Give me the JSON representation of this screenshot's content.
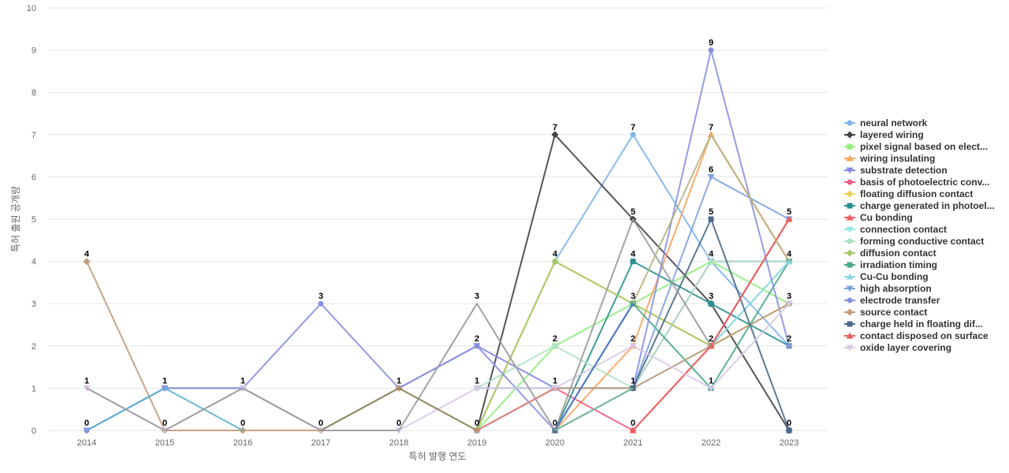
{
  "chart_data": {
    "type": "line",
    "title": "",
    "xlabel": "특허 발행 연도",
    "ylabel": "특허 출원 공개량",
    "x": [
      "2014",
      "2015",
      "2016",
      "2017",
      "2018",
      "2019",
      "2020",
      "2021",
      "2022",
      "2023"
    ],
    "ylim": [
      0,
      10
    ],
    "yticks": [
      "0",
      "1",
      "2",
      "3",
      "4",
      "5",
      "6",
      "7",
      "8",
      "9",
      "10"
    ],
    "grid": true,
    "legend_position": "right",
    "series": [
      {
        "name": "neural network",
        "color": "#7cb5ec",
        "marker": "circle",
        "values": [
          null,
          null,
          null,
          null,
          null,
          0,
          4,
          7,
          4,
          2
        ]
      },
      {
        "name": "layered wiring",
        "color": "#434348",
        "marker": "diamond",
        "values": [
          null,
          null,
          null,
          null,
          null,
          0,
          7,
          5,
          3,
          0
        ]
      },
      {
        "name": "pixel signal based on elect...",
        "color": "#90ed7d",
        "marker": "square",
        "values": [
          null,
          null,
          null,
          null,
          null,
          0,
          2,
          3,
          4,
          3
        ]
      },
      {
        "name": "wiring insulating",
        "color": "#f7a35c",
        "marker": "triangle",
        "values": [
          null,
          null,
          null,
          null,
          null,
          null,
          0,
          2,
          7,
          4
        ]
      },
      {
        "name": "substrate detection",
        "color": "#8085e9",
        "marker": "triangle-down",
        "values": [
          0,
          1,
          1,
          0,
          1,
          2,
          1,
          1,
          4,
          4
        ]
      },
      {
        "name": "basis of photoelectric conv...",
        "color": "#f15c80",
        "marker": "circle",
        "values": [
          null,
          null,
          null,
          null,
          null,
          0,
          1,
          0,
          2,
          5
        ]
      },
      {
        "name": "floating diffusion contact",
        "color": "#e4d354",
        "marker": "diamond",
        "values": [
          null,
          null,
          null,
          null,
          null,
          0,
          4,
          3,
          2,
          3
        ]
      },
      {
        "name": "charge generated in photoel...",
        "color": "#2b908f",
        "marker": "square",
        "values": [
          null,
          null,
          null,
          null,
          null,
          null,
          0,
          4,
          3,
          2
        ]
      },
      {
        "name": "Cu bonding",
        "color": "#f45b5b",
        "marker": "triangle",
        "values": [
          null,
          null,
          null,
          null,
          null,
          null,
          null,
          0,
          2,
          5
        ]
      },
      {
        "name": "connection contact",
        "color": "#91e8e1",
        "marker": "triangle-down",
        "values": [
          null,
          null,
          null,
          null,
          null,
          1,
          1,
          1,
          2,
          4
        ]
      },
      {
        "name": "forming conductive contact",
        "color": "#b0e0c0",
        "marker": "circle",
        "values": [
          null,
          null,
          null,
          null,
          null,
          1,
          2,
          1,
          4,
          4
        ]
      },
      {
        "name": "diffusion contact",
        "color": "#a6c96a",
        "marker": "diamond",
        "values": [
          null,
          null,
          null,
          null,
          null,
          0,
          4,
          3,
          2,
          3
        ]
      },
      {
        "name": "irradiation timing",
        "color": "#4aaa8a",
        "marker": "square",
        "values": [
          null,
          null,
          null,
          null,
          null,
          null,
          0,
          3,
          1,
          4
        ]
      },
      {
        "name": "Cu-Cu bonding",
        "color": "#88d8e0",
        "marker": "triangle",
        "values": [
          null,
          null,
          null,
          null,
          null,
          0,
          1,
          1,
          2,
          4
        ]
      },
      {
        "name": "high absorption",
        "color": "#7ba3e0",
        "marker": "triangle-down",
        "values": [
          null,
          null,
          null,
          null,
          null,
          1,
          1,
          1,
          6,
          5
        ]
      },
      {
        "name": "electrode transfer",
        "color": "#8891e0",
        "marker": "circle",
        "values": [
          0,
          1,
          1,
          3,
          1,
          2,
          0,
          1,
          9,
          2
        ]
      },
      {
        "name": "source contact",
        "color": "#c49a7a",
        "marker": "diamond",
        "values": [
          4,
          0,
          0,
          0,
          1,
          0,
          1,
          1,
          2,
          3
        ]
      },
      {
        "name": "charge held in floating dif...",
        "color": "#4a6a8a",
        "marker": "square",
        "values": [
          null,
          null,
          null,
          null,
          null,
          null,
          0,
          1,
          5,
          0
        ]
      },
      {
        "name": "contact disposed on surface",
        "color": "#e46060",
        "marker": "triangle",
        "values": [
          null,
          null,
          null,
          null,
          null,
          null,
          null,
          null,
          2,
          5
        ]
      },
      {
        "name": "oxide layer covering",
        "color": "#d8c8e4",
        "marker": "triangle-down",
        "values": [
          1,
          0,
          1,
          0,
          0,
          1,
          1,
          2,
          1,
          3
        ]
      },
      {
        "name": "",
        "color": "#5ab4cc",
        "marker": "none",
        "values": [
          0,
          1,
          0,
          null,
          null,
          null,
          null,
          null,
          null,
          null
        ]
      },
      {
        "name": "",
        "color": "#9a9a9a",
        "marker": "none",
        "values": [
          1,
          0,
          1,
          0,
          0,
          3,
          0,
          5,
          2,
          null
        ]
      },
      {
        "name": "",
        "color": "#8a8a60",
        "marker": "none",
        "values": [
          null,
          null,
          null,
          0,
          1,
          0,
          null,
          null,
          null,
          null
        ]
      },
      {
        "name": "",
        "color": "#b8b080",
        "marker": "none",
        "values": [
          null,
          null,
          null,
          null,
          null,
          null,
          null,
          3,
          7,
          4
        ]
      },
      {
        "name": "",
        "color": "#4d6ed0",
        "marker": "none",
        "values": [
          null,
          null,
          null,
          null,
          null,
          null,
          0,
          3,
          null,
          null
        ]
      },
      {
        "name": "",
        "color": "#e08080",
        "marker": "none",
        "values": [
          null,
          null,
          null,
          null,
          null,
          0,
          1,
          null,
          null,
          null
        ]
      },
      {
        "name": "",
        "color": "#80c8a0",
        "marker": "none",
        "values": [
          null,
          null,
          null,
          null,
          null,
          null,
          0,
          1,
          null,
          null
        ]
      }
    ],
    "data_labels": [
      {
        "x": "2014",
        "y": 4,
        "text": "4"
      },
      {
        "x": "2014",
        "y": 1,
        "text": "1"
      },
      {
        "x": "2014",
        "y": 0,
        "text": "0"
      },
      {
        "x": "2015",
        "y": 1,
        "text": "1"
      },
      {
        "x": "2015",
        "y": 0,
        "text": "0"
      },
      {
        "x": "2016",
        "y": 1,
        "text": "1"
      },
      {
        "x": "2016",
        "y": 0,
        "text": "0"
      },
      {
        "x": "2017",
        "y": 3,
        "text": "3"
      },
      {
        "x": "2017",
        "y": 0,
        "text": "0"
      },
      {
        "x": "2018",
        "y": 1,
        "text": "1"
      },
      {
        "x": "2018",
        "y": 0,
        "text": "0"
      },
      {
        "x": "2019",
        "y": 3,
        "text": "3"
      },
      {
        "x": "2019",
        "y": 2,
        "text": "2"
      },
      {
        "x": "2019",
        "y": 1,
        "text": "1"
      },
      {
        "x": "2019",
        "y": 0,
        "text": "0"
      },
      {
        "x": "2020",
        "y": 7,
        "text": "7"
      },
      {
        "x": "2020",
        "y": 4,
        "text": "4"
      },
      {
        "x": "2020",
        "y": 2,
        "text": "2"
      },
      {
        "x": "2020",
        "y": 1,
        "text": "1"
      },
      {
        "x": "2020",
        "y": 0,
        "text": "0"
      },
      {
        "x": "2021",
        "y": 7,
        "text": "7"
      },
      {
        "x": "2021",
        "y": 5,
        "text": "5"
      },
      {
        "x": "2021",
        "y": 4,
        "text": "4"
      },
      {
        "x": "2021",
        "y": 3,
        "text": "3"
      },
      {
        "x": "2021",
        "y": 2,
        "text": "2"
      },
      {
        "x": "2021",
        "y": 1,
        "text": "1"
      },
      {
        "x": "2021",
        "y": 0,
        "text": "0"
      },
      {
        "x": "2022",
        "y": 9,
        "text": "9"
      },
      {
        "x": "2022",
        "y": 7,
        "text": "7"
      },
      {
        "x": "2022",
        "y": 6,
        "text": "6"
      },
      {
        "x": "2022",
        "y": 5,
        "text": "5"
      },
      {
        "x": "2022",
        "y": 4,
        "text": "4"
      },
      {
        "x": "2022",
        "y": 3,
        "text": "3"
      },
      {
        "x": "2022",
        "y": 2,
        "text": "2"
      },
      {
        "x": "2022",
        "y": 1,
        "text": "1"
      },
      {
        "x": "2023",
        "y": 5,
        "text": "5"
      },
      {
        "x": "2023",
        "y": 4,
        "text": "4"
      },
      {
        "x": "2023",
        "y": 3,
        "text": "3"
      },
      {
        "x": "2023",
        "y": 2,
        "text": "2"
      },
      {
        "x": "2023",
        "y": 0,
        "text": "0"
      }
    ]
  }
}
